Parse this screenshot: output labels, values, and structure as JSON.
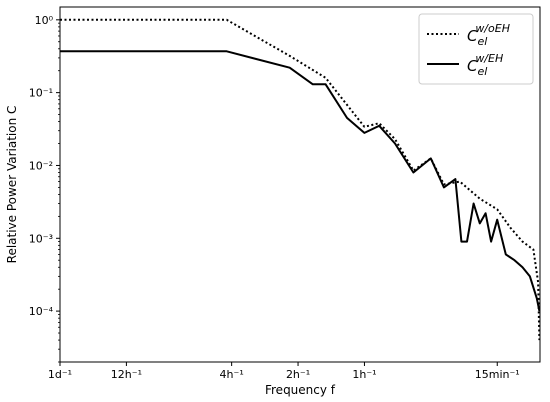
{
  "chart_data": {
    "type": "line",
    "xlabel": "Frequency f",
    "ylabel": "Relative Power Variation C",
    "x_scale": "log",
    "y_scale": "log",
    "xlim": [
      1,
      150
    ],
    "ylim": [
      2e-05,
      1.5
    ],
    "x_ticks": [
      {
        "value": 1,
        "label": "1d⁻¹"
      },
      {
        "value": 2,
        "label": "12h⁻¹"
      },
      {
        "value": 6,
        "label": "4h⁻¹"
      },
      {
        "value": 12,
        "label": "2h⁻¹"
      },
      {
        "value": 24,
        "label": "1h⁻¹"
      },
      {
        "value": 96,
        "label": "15min⁻¹"
      }
    ],
    "y_ticks": [
      {
        "value": 1,
        "label": "10⁰"
      },
      {
        "value": 0.1,
        "label": "10⁻¹"
      },
      {
        "value": 0.01,
        "label": "10⁻²"
      },
      {
        "value": 0.001,
        "label": "10⁻³"
      },
      {
        "value": 0.0001,
        "label": "10⁻⁴"
      }
    ],
    "legend_position": "top-right",
    "series": [
      {
        "name_base": "C",
        "name_sub": "el",
        "name_sup": "w/oEH",
        "style": "dotted",
        "x": [
          1,
          5.7,
          11,
          16,
          24,
          28,
          33,
          40,
          48,
          55,
          65,
          80,
          96,
          110,
          125,
          140,
          147,
          149
        ],
        "y": [
          1.0,
          1.0,
          0.32,
          0.16,
          0.034,
          0.038,
          0.023,
          0.0085,
          0.0125,
          0.0055,
          0.006,
          0.0035,
          0.0025,
          0.0014,
          0.0009,
          0.0007,
          0.00025,
          4e-05
        ]
      },
      {
        "name_base": "C",
        "name_sub": "el",
        "name_sup": "w/EH",
        "style": "solid",
        "x": [
          1,
          5.7,
          11,
          14,
          16,
          20,
          24,
          28,
          33,
          40,
          48,
          55,
          62,
          66,
          70,
          75,
          80,
          85,
          90,
          96,
          105,
          115,
          125,
          135,
          145,
          149
        ],
        "y": [
          0.37,
          0.37,
          0.22,
          0.13,
          0.13,
          0.045,
          0.028,
          0.035,
          0.02,
          0.008,
          0.0125,
          0.005,
          0.0065,
          0.0009,
          0.0009,
          0.003,
          0.0016,
          0.0022,
          0.0009,
          0.0018,
          0.0006,
          0.0005,
          0.0004,
          0.0003,
          0.00015,
          0.0001
        ]
      }
    ]
  }
}
